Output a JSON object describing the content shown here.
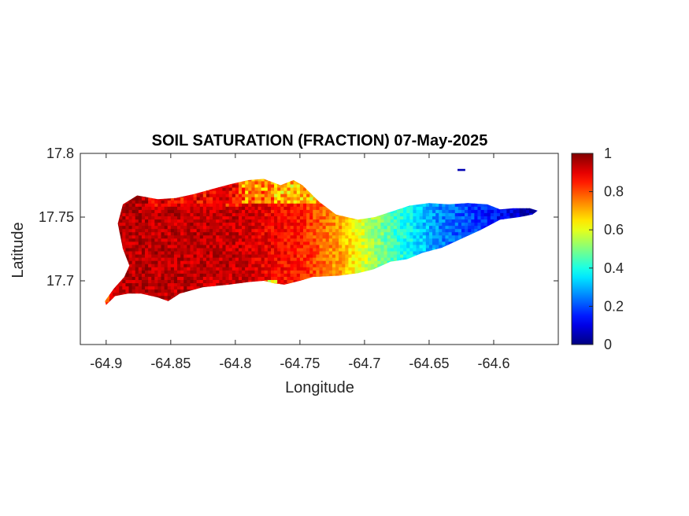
{
  "chart_data": {
    "type": "heatmap",
    "title": "SOIL SATURATION (FRACTION) 07-May-2025",
    "xlabel": "Longitude",
    "ylabel": "Latitude",
    "xlim": [
      -64.92,
      -64.55
    ],
    "ylim": [
      17.65,
      17.8
    ],
    "xticks": [
      -64.9,
      -64.85,
      -64.8,
      -64.75,
      -64.7,
      -64.65,
      -64.6
    ],
    "xtick_labels": [
      "-64.9",
      "-64.85",
      "-64.8",
      "-64.75",
      "-64.7",
      "-64.65",
      "-64.6"
    ],
    "yticks": [
      17.7,
      17.75,
      17.8
    ],
    "ytick_labels": [
      "17.7",
      "17.75",
      "17.8"
    ],
    "colormap": "jet",
    "colorbar": {
      "range": [
        0,
        1
      ],
      "ticks": [
        0,
        0.2,
        0.4,
        0.6,
        0.8,
        1
      ],
      "tick_labels": [
        "0",
        "0.2",
        "0.4",
        "0.6",
        "0.8",
        "1"
      ]
    },
    "field_profile": [
      {
        "lon": -64.9,
        "saturation": 0.95
      },
      {
        "lon": -64.8,
        "saturation": 0.93
      },
      {
        "lon": -64.75,
        "saturation": 0.85
      },
      {
        "lon": -64.72,
        "saturation": 0.72
      },
      {
        "lon": -64.7,
        "saturation": 0.58
      },
      {
        "lon": -64.68,
        "saturation": 0.45
      },
      {
        "lon": -64.66,
        "saturation": 0.35
      },
      {
        "lon": -64.64,
        "saturation": 0.25
      },
      {
        "lon": -64.61,
        "saturation": 0.17
      },
      {
        "lon": -64.57,
        "saturation": 0.05
      }
    ],
    "outline": [
      [
        -64.9,
        17.681
      ],
      [
        -64.893,
        17.688
      ],
      [
        -64.883,
        17.69
      ],
      [
        -64.873,
        17.69
      ],
      [
        -64.86,
        17.687
      ],
      [
        -64.852,
        17.684
      ],
      [
        -64.843,
        17.69
      ],
      [
        -64.825,
        17.695
      ],
      [
        -64.805,
        17.697
      ],
      [
        -64.79,
        17.699
      ],
      [
        -64.778,
        17.7
      ],
      [
        -64.77,
        17.698
      ],
      [
        -64.762,
        17.697
      ],
      [
        -64.75,
        17.7
      ],
      [
        -64.74,
        17.703
      ],
      [
        -64.72,
        17.704
      ],
      [
        -64.705,
        17.706
      ],
      [
        -64.693,
        17.709
      ],
      [
        -64.68,
        17.715
      ],
      [
        -64.667,
        17.717
      ],
      [
        -64.655,
        17.722
      ],
      [
        -64.64,
        17.726
      ],
      [
        -64.625,
        17.733
      ],
      [
        -64.61,
        17.74
      ],
      [
        -64.595,
        17.748
      ],
      [
        -64.58,
        17.75
      ],
      [
        -64.57,
        17.752
      ],
      [
        -64.566,
        17.755
      ],
      [
        -64.572,
        17.757
      ],
      [
        -64.585,
        17.757
      ],
      [
        -64.595,
        17.756
      ],
      [
        -64.605,
        17.76
      ],
      [
        -64.62,
        17.761
      ],
      [
        -64.635,
        17.76
      ],
      [
        -64.65,
        17.761
      ],
      [
        -64.665,
        17.759
      ],
      [
        -64.68,
        17.754
      ],
      [
        -64.692,
        17.75
      ],
      [
        -64.705,
        17.748
      ],
      [
        -64.722,
        17.752
      ],
      [
        -64.735,
        17.762
      ],
      [
        -64.748,
        17.775
      ],
      [
        -64.755,
        17.779
      ],
      [
        -64.765,
        17.775
      ],
      [
        -64.778,
        17.78
      ],
      [
        -64.79,
        17.779
      ],
      [
        -64.803,
        17.776
      ],
      [
        -64.818,
        17.772
      ],
      [
        -64.832,
        17.768
      ],
      [
        -64.846,
        17.765
      ],
      [
        -64.86,
        17.764
      ],
      [
        -64.876,
        17.767
      ],
      [
        -64.887,
        17.76
      ],
      [
        -64.891,
        17.745
      ],
      [
        -64.887,
        17.725
      ],
      [
        -64.882,
        17.712
      ],
      [
        -64.886,
        17.703
      ],
      [
        -64.894,
        17.694
      ],
      [
        -64.901,
        17.684
      ]
    ],
    "islet": {
      "lon": -64.625,
      "lat": 17.787,
      "saturation": 0.05
    }
  }
}
